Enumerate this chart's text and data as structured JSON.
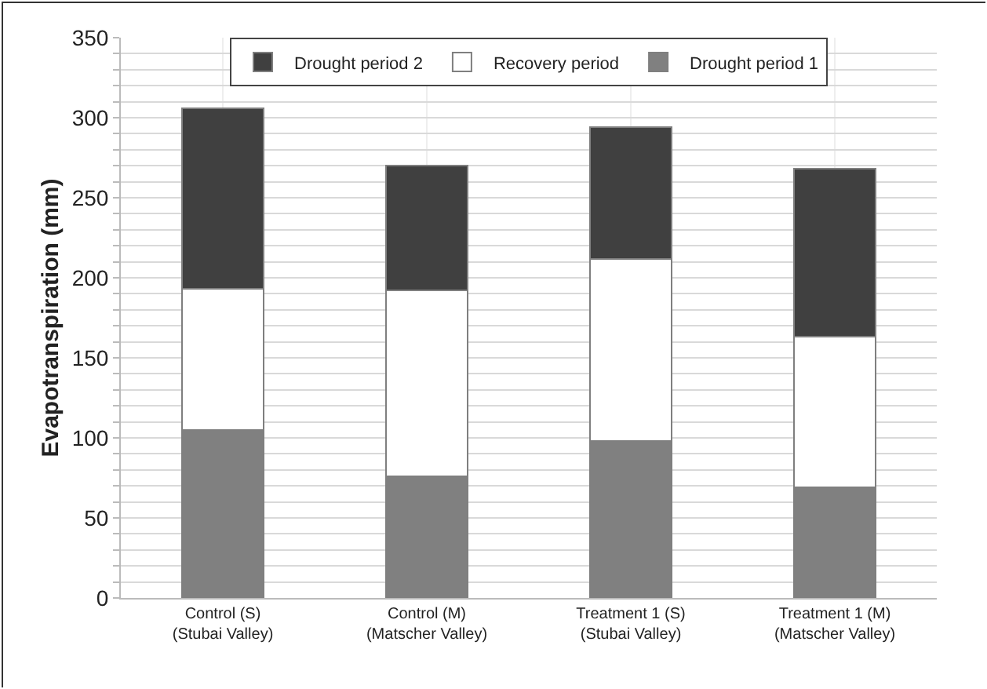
{
  "chart_data": {
    "type": "bar",
    "stacked": true,
    "ylabel": "Evapotranspiration (mm)",
    "categories": [
      "Control (S)\n(Stubai Valley)",
      "Control (M)\n(Matscher Valley)",
      "Treatment 1 (S)\n(Stubai Valley)",
      "Treatment 1 (M)\n(Matscher Valley)"
    ],
    "series": [
      {
        "name": "Drought period 1",
        "color": "#808080",
        "values": [
          105,
          76,
          98,
          69
        ]
      },
      {
        "name": "Recovery period",
        "color": "#ffffff",
        "values": [
          88,
          116,
          114,
          94
        ]
      },
      {
        "name": "Drought period 2",
        "color": "#404040",
        "values": [
          113,
          78,
          82,
          105
        ]
      }
    ],
    "ylim": [
      0,
      350
    ],
    "yticks": [
      0,
      {
        "value": 10,
        "label": null
      },
      {
        "value": 20,
        "label": null
      },
      {
        "value": 30,
        "label": null
      },
      {
        "value": 40,
        "label": null
      },
      50,
      {
        "value": 60,
        "label": null
      },
      {
        "value": 70,
        "label": null
      },
      {
        "value": 80,
        "label": null
      },
      {
        "value": 90,
        "label": null
      },
      100,
      {
        "value": 110,
        "label": null
      },
      {
        "value": 120,
        "label": null
      },
      {
        "value": 130,
        "label": null
      },
      {
        "value": 140,
        "label": null
      },
      150,
      {
        "value": 160,
        "label": null
      },
      {
        "value": 170,
        "label": null
      },
      {
        "value": 180,
        "label": null
      },
      {
        "value": 190,
        "label": null
      },
      200,
      {
        "value": 210,
        "label": null
      },
      {
        "value": 220,
        "label": null
      },
      {
        "value": 230,
        "label": null
      },
      {
        "value": 240,
        "label": null
      },
      250,
      {
        "value": 260,
        "label": null
      },
      {
        "value": 270,
        "label": null
      },
      {
        "value": 280,
        "label": null
      },
      {
        "value": 290,
        "label": null
      },
      300,
      {
        "value": 310,
        "label": null
      },
      {
        "value": 320,
        "label": null
      },
      {
        "value": 330,
        "label": null
      },
      {
        "value": 340,
        "label": null
      },
      350
    ],
    "grid": true,
    "legend": "top"
  }
}
